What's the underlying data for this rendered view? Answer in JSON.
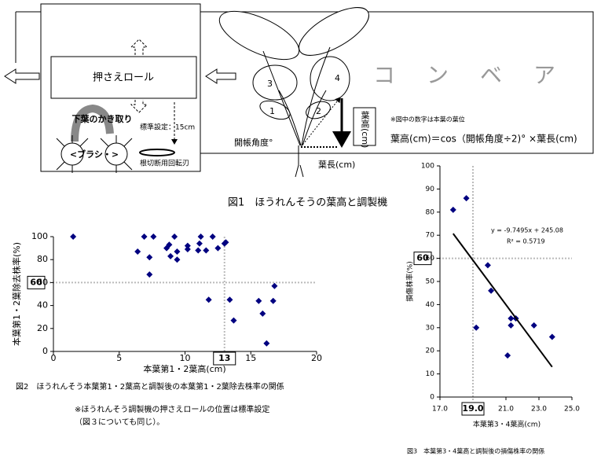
{
  "figure1": {
    "roll": "押さえロール",
    "lower_leaf": "下葉のかき取り",
    "brush": "<ブラシ・>",
    "standard": "標準設定：15cm",
    "blade": "根切断用回転刃",
    "conveyor": "コ　ン　ベ　ア",
    "leaf_numbers": [
      "1",
      "2",
      "3",
      "4"
    ],
    "angle": "開帳角度°",
    "leaf_length": "葉長(cm)",
    "leaf_height": "葉高(cm)",
    "note": "※図中の数字は本葉の葉位",
    "formula": "葉高(cm)＝cos（開帳角度÷2)°  ×葉長(cm)",
    "caption": "図1　ほうれんそうの葉高と調製機"
  },
  "figure2_note": [
    "※ほうれんそう調製機の押さえロールの位置は標準設定",
    "（図３についても同じ）。"
  ],
  "chart_data": [
    {
      "type": "scatter",
      "caption": "図2　ほうれんそう本葉第1・2葉高と調製後の本葉第1・2葉除去株率の関係",
      "x_label": "本葉第1・2葉高(cm)",
      "y_label": "本葉第1・2葉除去株率(%)",
      "color": "#000080",
      "x": [
        1.5,
        6.9,
        7.6,
        9.2,
        11.2,
        12.1,
        13.0,
        13.1,
        6.4,
        8.6,
        8.8,
        10.2,
        10.2,
        9.4,
        11.1,
        11.0,
        11.6,
        12.5,
        8.9,
        7.3,
        9.4,
        7.3,
        11.8,
        13.4,
        13.7,
        15.6,
        15.9,
        16.8,
        16.7,
        16.2
      ],
      "values": [
        100,
        100,
        100,
        100,
        100,
        100,
        94,
        95,
        87,
        90,
        93,
        92,
        89,
        87,
        94,
        88,
        88,
        90,
        83,
        82,
        80,
        67,
        45,
        45,
        27,
        44,
        33,
        57,
        44,
        7
      ],
      "xlim": [
        0,
        20
      ],
      "xticks": [
        0,
        5,
        10,
        15,
        20
      ],
      "ylim": [
        0,
        100
      ],
      "yticks": [
        0,
        20,
        40,
        60,
        80,
        100
      ],
      "hlines": [
        60
      ],
      "vlines": [
        13
      ]
    },
    {
      "type": "scatter",
      "caption": "図3　本葉第3・4葉高と調製後の損傷株率の関係",
      "x_label": "本葉第3・4葉高(cm)",
      "y_label": "損傷株率(%)",
      "color": "#000080",
      "x": [
        17.8,
        18.6,
        19.2,
        19.9,
        20.1,
        21.1,
        21.3,
        21.3,
        21.6,
        22.7,
        23.8
      ],
      "values": [
        81,
        86,
        30,
        57,
        46,
        18,
        34,
        31,
        34,
        31,
        26
      ],
      "xlim": [
        17,
        25
      ],
      "xticks": [
        {
          "value": 17,
          "label": "17.0"
        },
        {
          "value": 21,
          "label": "21.0"
        },
        {
          "value": 23,
          "label": "23.0"
        },
        {
          "value": 25,
          "label": "25.0"
        }
      ],
      "ylim": [
        0,
        100
      ],
      "yticks": [
        0,
        10,
        20,
        30,
        40,
        50,
        60,
        70,
        80,
        90,
        100
      ],
      "hlines": [
        60
      ],
      "vlines": [
        {
          "value": 19,
          "label": "19.0"
        }
      ],
      "trendline": {
        "equation": "y = -9.7495x + 245.08",
        "r2": "R² = 0.5719"
      }
    }
  ]
}
